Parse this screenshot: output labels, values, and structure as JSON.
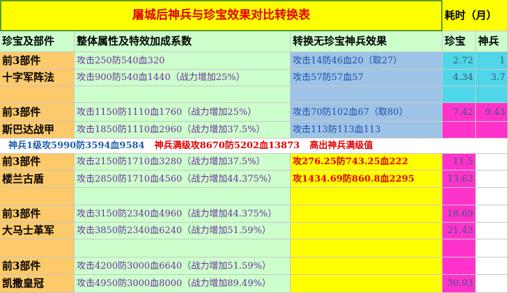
{
  "header": {
    "title": "屠城后神兵与珍宝效果对比转换表",
    "duration": "耗时（月）"
  },
  "table": {
    "columns": [
      "珍宝及部件",
      "整体属性及特效加成系数",
      "转换无珍宝神兵效果",
      "珍宝",
      "神兵"
    ],
    "rows": [
      [
        "前3部件",
        "攻击250防540血320",
        "攻击14防46血20（取27）",
        "2.72",
        "1"
      ],
      [
        "十字军阵法",
        "攻击900防540血1440（战力增加25%）",
        "攻击57防57血57",
        "4.34",
        "3.7"
      ],
      [
        null,
        null,
        null,
        null,
        null
      ],
      [
        "前3部件",
        "攻击1150防1110血1760（战力增加25%）",
        "攻击70防102血67（取80）",
        "7.42",
        "9.43"
      ],
      [
        "斯巴达战甲",
        "攻击1850防1110血2960（战力增加37.5%）",
        "攻击113防113血113",
        null,
        null
      ],
      [
        "前3部件",
        "攻击2150防1710血3280（战力增加37.5%）",
        "攻276.25防743.25血222",
        "11.5",
        null
      ],
      [
        "楼兰古盾",
        "攻击2850防1710血4560（战力增加44.375%）",
        "攻1434.69防860.8血2295",
        "13.63",
        null
      ],
      [
        null,
        null,
        null,
        null,
        null
      ],
      [
        "前3部件",
        "攻击3150防2340血4960（战力增加44.375%）",
        null,
        "18.69",
        null
      ],
      [
        "大马士革军",
        "攻击3850防2340血6240（战力增加51.59%）",
        null,
        "21.43",
        null
      ],
      [
        null,
        null,
        null,
        null,
        null
      ],
      [
        "前3部件",
        "攻击4200防3000血6640（战力增加51.59%）",
        null,
        null,
        null
      ],
      [
        "凯撒皇冠",
        "攻击4950防3000血8000（战力增加89.49%）",
        null,
        "30.93",
        null
      ]
    ],
    "banner": {
      "level1": "神兵1级攻5990防3594血9584",
      "max_level": "神兵满级攻8670防5202血13873",
      "note": "高出神兵满级值"
    }
  }
}
